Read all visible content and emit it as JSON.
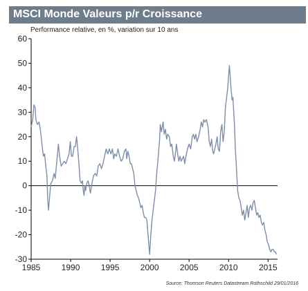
{
  "header": {
    "title": "MSCI Monde Valeurs p/r Croissance"
  },
  "subtitle": "Performance relative, en %, variation sur 10 ans",
  "source": "Source: Thomson Reuters Datastream Rothschild 29/01/2016",
  "colors": {
    "title_bar": "#6e7d8c",
    "line": "#7d8ea8",
    "axis": "#000000"
  },
  "chart_data": {
    "type": "line",
    "title": "MSCI Monde Valeurs p/r Croissance",
    "subtitle": "Performance relative, en %, variation sur 10 ans",
    "xlabel": "",
    "ylabel": "",
    "xlim": [
      1985,
      2016.2
    ],
    "ylim": [
      -30,
      60
    ],
    "x_ticks": [
      1985,
      1990,
      1995,
      2000,
      2005,
      2010,
      2015
    ],
    "y_ticks": [
      -30,
      -20,
      -10,
      0,
      10,
      20,
      30,
      40,
      50,
      60
    ],
    "grid": false,
    "zero_line": true,
    "series": [
      {
        "color": "#7d8ea8",
        "points": [
          [
            1985.0,
            24
          ],
          [
            1985.2,
            27
          ],
          [
            1985.35,
            33
          ],
          [
            1985.5,
            32
          ],
          [
            1985.6,
            27
          ],
          [
            1985.8,
            25
          ],
          [
            1986.0,
            26
          ],
          [
            1986.2,
            22
          ],
          [
            1986.4,
            16
          ],
          [
            1986.55,
            12
          ],
          [
            1986.7,
            13
          ],
          [
            1986.85,
            8
          ],
          [
            1987.0,
            4
          ],
          [
            1987.1,
            -6
          ],
          [
            1987.2,
            -10
          ],
          [
            1987.35,
            -4
          ],
          [
            1987.5,
            1
          ],
          [
            1987.7,
            2
          ],
          [
            1987.9,
            5
          ],
          [
            1988.05,
            3
          ],
          [
            1988.25,
            10
          ],
          [
            1988.45,
            17
          ],
          [
            1988.6,
            12
          ],
          [
            1988.8,
            8
          ],
          [
            1989.0,
            9
          ],
          [
            1989.2,
            10
          ],
          [
            1989.4,
            9
          ],
          [
            1989.6,
            11
          ],
          [
            1989.8,
            13
          ],
          [
            1989.95,
            18
          ],
          [
            1990.1,
            12
          ],
          [
            1990.25,
            12
          ],
          [
            1990.45,
            16
          ],
          [
            1990.6,
            16
          ],
          [
            1990.75,
            20
          ],
          [
            1990.9,
            15
          ],
          [
            1991.05,
            9
          ],
          [
            1991.2,
            2
          ],
          [
            1991.35,
            1
          ],
          [
            1991.5,
            2
          ],
          [
            1991.6,
            -2
          ],
          [
            1991.7,
            -4
          ],
          [
            1991.8,
            0
          ],
          [
            1991.9,
            -2
          ],
          [
            1992.05,
            1
          ],
          [
            1992.2,
            2
          ],
          [
            1992.35,
            0
          ],
          [
            1992.5,
            -3
          ],
          [
            1992.7,
            1
          ],
          [
            1992.9,
            4
          ],
          [
            1993.1,
            5
          ],
          [
            1993.3,
            4
          ],
          [
            1993.5,
            8
          ],
          [
            1993.7,
            9
          ],
          [
            1993.9,
            7
          ],
          [
            1994.1,
            9
          ],
          [
            1994.3,
            12
          ],
          [
            1994.5,
            15
          ],
          [
            1994.7,
            13
          ],
          [
            1994.9,
            15
          ],
          [
            1995.1,
            13
          ],
          [
            1995.3,
            15
          ],
          [
            1995.45,
            11
          ],
          [
            1995.6,
            13
          ],
          [
            1995.8,
            12
          ],
          [
            1996.0,
            15
          ],
          [
            1996.2,
            12
          ],
          [
            1996.4,
            10
          ],
          [
            1996.6,
            11
          ],
          [
            1996.8,
            14
          ],
          [
            1997.0,
            15
          ],
          [
            1997.1,
            11
          ],
          [
            1997.25,
            14
          ],
          [
            1997.4,
            12
          ],
          [
            1997.55,
            9
          ],
          [
            1997.7,
            9
          ],
          [
            1997.85,
            7
          ],
          [
            1998.0,
            5
          ],
          [
            1998.15,
            0
          ],
          [
            1998.3,
            -2
          ],
          [
            1998.45,
            -4
          ],
          [
            1998.6,
            -5
          ],
          [
            1998.75,
            -7
          ],
          [
            1998.9,
            -9
          ],
          [
            1999.05,
            -8
          ],
          [
            1999.2,
            -11
          ],
          [
            1999.35,
            -13
          ],
          [
            1999.5,
            -13
          ],
          [
            1999.65,
            -14
          ],
          [
            1999.8,
            -20
          ],
          [
            1999.9,
            -24
          ],
          [
            2000.0,
            -28
          ],
          [
            2000.15,
            -20
          ],
          [
            2000.3,
            -14
          ],
          [
            2000.45,
            -10
          ],
          [
            2000.6,
            -6
          ],
          [
            2000.75,
            -2
          ],
          [
            2000.9,
            5
          ],
          [
            2001.1,
            12
          ],
          [
            2001.25,
            18
          ],
          [
            2001.35,
            25
          ],
          [
            2001.5,
            22
          ],
          [
            2001.7,
            26
          ],
          [
            2001.85,
            21
          ],
          [
            2002.0,
            23
          ],
          [
            2002.15,
            19
          ],
          [
            2002.3,
            21
          ],
          [
            2002.5,
            20
          ],
          [
            2002.65,
            16
          ],
          [
            2002.8,
            17
          ],
          [
            2003.0,
            12
          ],
          [
            2003.15,
            10
          ],
          [
            2003.3,
            14
          ],
          [
            2003.4,
            17
          ],
          [
            2003.55,
            13
          ],
          [
            2003.7,
            10
          ],
          [
            2003.85,
            12
          ],
          [
            2004.0,
            10
          ],
          [
            2004.15,
            11
          ],
          [
            2004.3,
            12
          ],
          [
            2004.45,
            9
          ],
          [
            2004.6,
            12
          ],
          [
            2004.8,
            15
          ],
          [
            2005.0,
            17
          ],
          [
            2005.2,
            15
          ],
          [
            2005.4,
            20
          ],
          [
            2005.55,
            21
          ],
          [
            2005.7,
            19
          ],
          [
            2005.85,
            21
          ],
          [
            2006.0,
            18
          ],
          [
            2006.2,
            20
          ],
          [
            2006.4,
            23
          ],
          [
            2006.55,
            26
          ],
          [
            2006.7,
            24
          ],
          [
            2006.85,
            27
          ],
          [
            2007.0,
            26
          ],
          [
            2007.2,
            27
          ],
          [
            2007.4,
            24
          ],
          [
            2007.55,
            18
          ],
          [
            2007.7,
            16
          ],
          [
            2007.85,
            19
          ],
          [
            2008.0,
            14
          ],
          [
            2008.1,
            13
          ],
          [
            2008.25,
            15
          ],
          [
            2008.4,
            17
          ],
          [
            2008.55,
            20
          ],
          [
            2008.7,
            15
          ],
          [
            2008.85,
            14
          ],
          [
            2009.0,
            22
          ],
          [
            2009.15,
            25
          ],
          [
            2009.3,
            18
          ],
          [
            2009.45,
            22
          ],
          [
            2009.6,
            32
          ],
          [
            2009.75,
            36
          ],
          [
            2009.9,
            40
          ],
          [
            2010.0,
            45
          ],
          [
            2010.1,
            49
          ],
          [
            2010.2,
            45
          ],
          [
            2010.3,
            40
          ],
          [
            2010.45,
            35
          ],
          [
            2010.55,
            36
          ],
          [
            2010.65,
            30
          ],
          [
            2010.75,
            25
          ],
          [
            2010.85,
            15
          ],
          [
            2010.95,
            10
          ],
          [
            2011.05,
            4
          ],
          [
            2011.15,
            -2
          ],
          [
            2011.3,
            -5
          ],
          [
            2011.45,
            -6
          ],
          [
            2011.6,
            -9
          ],
          [
            2011.75,
            -12
          ],
          [
            2011.9,
            -10
          ],
          [
            2012.05,
            -14
          ],
          [
            2012.2,
            -11
          ],
          [
            2012.35,
            -8
          ],
          [
            2012.5,
            -13
          ],
          [
            2012.65,
            -9
          ],
          [
            2012.8,
            -8
          ],
          [
            2012.95,
            -10
          ],
          [
            2013.1,
            -7
          ],
          [
            2013.25,
            -6
          ],
          [
            2013.4,
            -9
          ],
          [
            2013.55,
            -12
          ],
          [
            2013.7,
            -11
          ],
          [
            2013.85,
            -13
          ],
          [
            2014.0,
            -12
          ],
          [
            2014.15,
            -15
          ],
          [
            2014.3,
            -16
          ],
          [
            2014.45,
            -15
          ],
          [
            2014.6,
            -18
          ],
          [
            2014.75,
            -20
          ],
          [
            2014.9,
            -23
          ],
          [
            2015.05,
            -24
          ],
          [
            2015.2,
            -26
          ],
          [
            2015.35,
            -27
          ],
          [
            2015.5,
            -26
          ],
          [
            2015.65,
            -26
          ],
          [
            2015.8,
            -27
          ],
          [
            2015.95,
            -27
          ],
          [
            2016.05,
            -28
          ]
        ]
      }
    ]
  }
}
